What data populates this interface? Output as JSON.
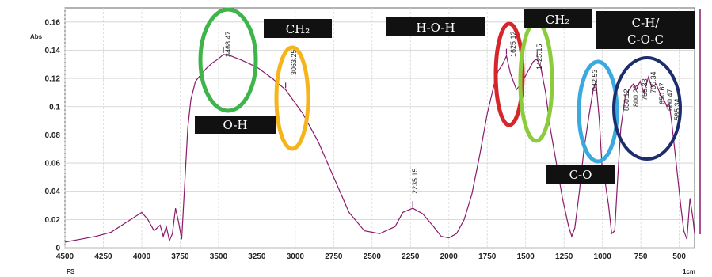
{
  "chart_data": {
    "type": "line",
    "ylabel": "Abs",
    "x_corner_left": "FS",
    "x_corner_right": "1cm",
    "xlim": [
      4500,
      400
    ],
    "ylim": [
      0,
      0.17
    ],
    "x_ticks": [
      "4500",
      "4250",
      "4000",
      "3750",
      "3500",
      "3250",
      "3000",
      "2750",
      "2500",
      "2250",
      "2000",
      "1750",
      "1500",
      "1250",
      "1000",
      "750",
      "500"
    ],
    "y_ticks": [
      "0",
      "0.02",
      "0.04",
      "0.06",
      "0.08",
      "0.1",
      "0.12",
      "0.14",
      "0.16"
    ],
    "grid": true,
    "series": [
      {
        "color": "#8b1a6b",
        "x": [
          4500,
          4400,
          4300,
          4200,
          4100,
          4000,
          3960,
          3920,
          3880,
          3860,
          3840,
          3820,
          3800,
          3780,
          3760,
          3740,
          3720,
          3700,
          3680,
          3650,
          3620,
          3580,
          3540,
          3500,
          3468,
          3420,
          3350,
          3250,
          3150,
          3063,
          2950,
          2850,
          2750,
          2650,
          2550,
          2450,
          2350,
          2300,
          2235,
          2170,
          2100,
          2050,
          2000,
          1950,
          1900,
          1850,
          1800,
          1750,
          1700,
          1680,
          1650,
          1625,
          1600,
          1560,
          1520,
          1480,
          1450,
          1425,
          1400,
          1370,
          1340,
          1300,
          1260,
          1220,
          1200,
          1180,
          1150,
          1120,
          1090,
          1060,
          1042,
          1020,
          1000,
          980,
          960,
          940,
          920,
          900,
          880,
          850,
          820,
          800,
          780,
          755,
          730,
          700,
          680,
          650,
          620,
          600,
          580,
          565,
          550,
          530,
          510,
          490,
          470,
          450,
          430,
          410,
          400
        ],
        "y": [
          0.004,
          0.006,
          0.008,
          0.011,
          0.018,
          0.025,
          0.02,
          0.012,
          0.016,
          0.008,
          0.015,
          0.005,
          0.01,
          0.028,
          0.018,
          0.006,
          0.045,
          0.085,
          0.105,
          0.118,
          0.122,
          0.127,
          0.131,
          0.134,
          0.137,
          0.136,
          0.133,
          0.128,
          0.12,
          0.112,
          0.095,
          0.075,
          0.05,
          0.025,
          0.012,
          0.01,
          0.015,
          0.025,
          0.028,
          0.024,
          0.015,
          0.008,
          0.007,
          0.01,
          0.02,
          0.038,
          0.065,
          0.095,
          0.118,
          0.125,
          0.13,
          0.136,
          0.124,
          0.112,
          0.118,
          0.126,
          0.132,
          0.134,
          0.127,
          0.11,
          0.085,
          0.06,
          0.035,
          0.015,
          0.008,
          0.014,
          0.04,
          0.07,
          0.092,
          0.112,
          0.118,
          0.09,
          0.052,
          0.045,
          0.03,
          0.01,
          0.012,
          0.05,
          0.085,
          0.108,
          0.113,
          0.116,
          0.112,
          0.118,
          0.11,
          0.121,
          0.114,
          0.116,
          0.108,
          0.105,
          0.1,
          0.102,
          0.09,
          0.07,
          0.05,
          0.03,
          0.012,
          0.006,
          0.035,
          0.02,
          0.01
        ]
      }
    ],
    "peak_labels": [
      "3468.47",
      "3063.25",
      "2235.15",
      "1625.12",
      "1425.15",
      "1042.53",
      "850.12",
      "800.23",
      "755.33",
      "705.34",
      "650.67",
      "600.47",
      "565.34"
    ],
    "band_labels": {
      "oh": "O-H",
      "ch2_a": "CH₂",
      "hoh": "H-O-H",
      "ch2_b": "CH₂",
      "co": "C-O",
      "ch_coc_line1": "C-H/",
      "ch_coc_line2": "C-O-C"
    },
    "ellipse_colors": {
      "green": "#3db54a",
      "orange": "#f5b41a",
      "red": "#d7262b",
      "lime": "#8ccc3c",
      "blue": "#3aa9e0",
      "navy": "#1d2d6b"
    }
  }
}
